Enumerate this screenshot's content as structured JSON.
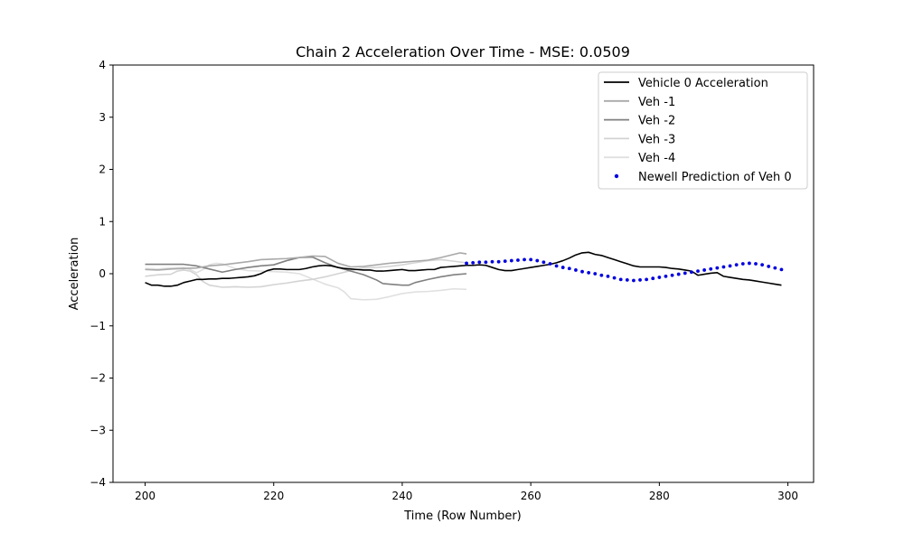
{
  "chart_data": {
    "type": "line",
    "title": "Chain 2 Acceleration Over Time - MSE: 0.0509",
    "xlabel": "Time (Row Number)",
    "ylabel": "Acceleration",
    "xlim": [
      195,
      304
    ],
    "ylim": [
      -4,
      4
    ],
    "xticks": [
      200,
      220,
      240,
      260,
      280,
      300
    ],
    "yticks": [
      -4,
      -3,
      -2,
      -1,
      0,
      1,
      2,
      3,
      4
    ],
    "grid": false,
    "legend_position": "top-right",
    "series": [
      {
        "name": "Vehicle 0 Acceleration",
        "style": "line",
        "color": "#000000",
        "points": [
          [
            200,
            -0.17
          ],
          [
            201,
            -0.22
          ],
          [
            202,
            -0.22
          ],
          [
            203,
            -0.24
          ],
          [
            204,
            -0.24
          ],
          [
            205,
            -0.22
          ],
          [
            206,
            -0.17
          ],
          [
            207,
            -0.14
          ],
          [
            208,
            -0.11
          ],
          [
            209,
            -0.11
          ],
          [
            210,
            -0.1
          ],
          [
            211,
            -0.1
          ],
          [
            212,
            -0.09
          ],
          [
            213,
            -0.09
          ],
          [
            214,
            -0.08
          ],
          [
            215,
            -0.07
          ],
          [
            216,
            -0.06
          ],
          [
            217,
            -0.04
          ],
          [
            218,
            0.0
          ],
          [
            219,
            0.06
          ],
          [
            220,
            0.09
          ],
          [
            221,
            0.09
          ],
          [
            222,
            0.08
          ],
          [
            223,
            0.08
          ],
          [
            224,
            0.08
          ],
          [
            225,
            0.1
          ],
          [
            226,
            0.13
          ],
          [
            227,
            0.15
          ],
          [
            228,
            0.16
          ],
          [
            229,
            0.15
          ],
          [
            230,
            0.12
          ],
          [
            231,
            0.1
          ],
          [
            232,
            0.09
          ],
          [
            233,
            0.08
          ],
          [
            234,
            0.07
          ],
          [
            235,
            0.07
          ],
          [
            236,
            0.05
          ],
          [
            237,
            0.05
          ],
          [
            238,
            0.06
          ],
          [
            239,
            0.07
          ],
          [
            240,
            0.08
          ],
          [
            241,
            0.06
          ],
          [
            242,
            0.06
          ],
          [
            243,
            0.07
          ],
          [
            244,
            0.08
          ],
          [
            245,
            0.08
          ],
          [
            246,
            0.12
          ],
          [
            247,
            0.13
          ],
          [
            248,
            0.14
          ],
          [
            249,
            0.15
          ],
          [
            250,
            0.16
          ],
          [
            251,
            0.16
          ],
          [
            252,
            0.17
          ],
          [
            253,
            0.16
          ],
          [
            254,
            0.12
          ],
          [
            255,
            0.08
          ],
          [
            256,
            0.06
          ],
          [
            257,
            0.06
          ],
          [
            258,
            0.08
          ],
          [
            259,
            0.1
          ],
          [
            260,
            0.12
          ],
          [
            261,
            0.14
          ],
          [
            262,
            0.16
          ],
          [
            263,
            0.18
          ],
          [
            264,
            0.21
          ],
          [
            265,
            0.25
          ],
          [
            266,
            0.3
          ],
          [
            267,
            0.36
          ],
          [
            268,
            0.4
          ],
          [
            269,
            0.41
          ],
          [
            270,
            0.37
          ],
          [
            271,
            0.35
          ],
          [
            272,
            0.31
          ],
          [
            273,
            0.27
          ],
          [
            274,
            0.23
          ],
          [
            275,
            0.19
          ],
          [
            276,
            0.15
          ],
          [
            277,
            0.13
          ],
          [
            278,
            0.13
          ],
          [
            279,
            0.13
          ],
          [
            280,
            0.13
          ],
          [
            281,
            0.12
          ],
          [
            282,
            0.1
          ],
          [
            283,
            0.09
          ],
          [
            284,
            0.07
          ],
          [
            285,
            0.05
          ],
          [
            286,
            -0.03
          ],
          [
            287,
            -0.01
          ],
          [
            288,
            0.01
          ],
          [
            289,
            0.02
          ],
          [
            290,
            -0.05
          ],
          [
            291,
            -0.07
          ],
          [
            292,
            -0.09
          ],
          [
            293,
            -0.11
          ],
          [
            294,
            -0.12
          ],
          [
            295,
            -0.14
          ],
          [
            296,
            -0.16
          ],
          [
            297,
            -0.18
          ],
          [
            298,
            -0.2
          ],
          [
            299,
            -0.22
          ]
        ]
      },
      {
        "name": "Veh -1",
        "style": "line",
        "color": "#a9a9a9",
        "points": [
          [
            200,
            0.08
          ],
          [
            202,
            0.07
          ],
          [
            204,
            0.09
          ],
          [
            206,
            0.1
          ],
          [
            208,
            0.11
          ],
          [
            210,
            0.15
          ],
          [
            212,
            0.17
          ],
          [
            214,
            0.2
          ],
          [
            216,
            0.23
          ],
          [
            218,
            0.27
          ],
          [
            220,
            0.28
          ],
          [
            222,
            0.29
          ],
          [
            224,
            0.31
          ],
          [
            226,
            0.34
          ],
          [
            228,
            0.33
          ],
          [
            230,
            0.2
          ],
          [
            232,
            0.13
          ],
          [
            234,
            0.14
          ],
          [
            236,
            0.17
          ],
          [
            238,
            0.2
          ],
          [
            240,
            0.22
          ],
          [
            242,
            0.24
          ],
          [
            244,
            0.26
          ],
          [
            246,
            0.31
          ],
          [
            248,
            0.37
          ],
          [
            249,
            0.4
          ],
          [
            250,
            0.38
          ]
        ]
      },
      {
        "name": "Veh -2",
        "style": "line",
        "color": "#808080",
        "points": [
          [
            200,
            0.18
          ],
          [
            202,
            0.18
          ],
          [
            204,
            0.18
          ],
          [
            206,
            0.18
          ],
          [
            208,
            0.15
          ],
          [
            209,
            0.12
          ],
          [
            210,
            0.09
          ],
          [
            212,
            0.03
          ],
          [
            214,
            0.08
          ],
          [
            216,
            0.12
          ],
          [
            218,
            0.15
          ],
          [
            220,
            0.17
          ],
          [
            222,
            0.25
          ],
          [
            224,
            0.31
          ],
          [
            226,
            0.32
          ],
          [
            228,
            0.21
          ],
          [
            230,
            0.12
          ],
          [
            232,
            0.05
          ],
          [
            234,
            -0.02
          ],
          [
            236,
            -0.12
          ],
          [
            237,
            -0.19
          ],
          [
            238,
            -0.2
          ],
          [
            240,
            -0.22
          ],
          [
            241,
            -0.22
          ],
          [
            242,
            -0.17
          ],
          [
            244,
            -0.11
          ],
          [
            246,
            -0.06
          ],
          [
            248,
            -0.02
          ],
          [
            250,
            0.0
          ]
        ]
      },
      {
        "name": "Veh -3",
        "style": "line",
        "color": "#d3d3d3",
        "points": [
          [
            200,
            -0.05
          ],
          [
            202,
            -0.02
          ],
          [
            204,
            -0.01
          ],
          [
            205,
            0.05
          ],
          [
            206,
            0.07
          ],
          [
            207,
            0.05
          ],
          [
            208,
            -0.02
          ],
          [
            209,
            -0.15
          ],
          [
            210,
            -0.22
          ],
          [
            212,
            -0.26
          ],
          [
            214,
            -0.25
          ],
          [
            216,
            -0.26
          ],
          [
            218,
            -0.25
          ],
          [
            220,
            -0.21
          ],
          [
            222,
            -0.18
          ],
          [
            224,
            -0.14
          ],
          [
            226,
            -0.11
          ],
          [
            228,
            -0.06
          ],
          [
            230,
            0.0
          ],
          [
            232,
            0.06
          ],
          [
            234,
            0.11
          ],
          [
            236,
            0.12
          ],
          [
            238,
            0.14
          ],
          [
            240,
            0.17
          ],
          [
            242,
            0.21
          ],
          [
            244,
            0.25
          ],
          [
            246,
            0.27
          ],
          [
            248,
            0.24
          ],
          [
            250,
            0.21
          ]
        ]
      },
      {
        "name": "Veh -4",
        "style": "line",
        "color": "#e0e0e0",
        "points": [
          [
            200,
            0.1
          ],
          [
            202,
            0.09
          ],
          [
            204,
            0.11
          ],
          [
            206,
            0.12
          ],
          [
            207,
            0.08
          ],
          [
            208,
            0.02
          ],
          [
            209,
            0.08
          ],
          [
            210,
            0.17
          ],
          [
            211,
            0.2
          ],
          [
            212,
            0.19
          ],
          [
            214,
            0.1
          ],
          [
            216,
            0.06
          ],
          [
            218,
            0.05
          ],
          [
            220,
            0.04
          ],
          [
            222,
            0.03
          ],
          [
            224,
            0.0
          ],
          [
            226,
            -0.1
          ],
          [
            228,
            -0.2
          ],
          [
            230,
            -0.27
          ],
          [
            231,
            -0.35
          ],
          [
            232,
            -0.48
          ],
          [
            234,
            -0.5
          ],
          [
            236,
            -0.49
          ],
          [
            238,
            -0.44
          ],
          [
            240,
            -0.38
          ],
          [
            242,
            -0.35
          ],
          [
            244,
            -0.34
          ],
          [
            246,
            -0.32
          ],
          [
            248,
            -0.29
          ],
          [
            250,
            -0.3
          ]
        ]
      },
      {
        "name": "Newell Prediction of Veh 0",
        "style": "dots",
        "color": "#0000e0",
        "points": [
          [
            250,
            0.2
          ],
          [
            251,
            0.21
          ],
          [
            252,
            0.22
          ],
          [
            253,
            0.22
          ],
          [
            254,
            0.23
          ],
          [
            255,
            0.23
          ],
          [
            256,
            0.24
          ],
          [
            257,
            0.25
          ],
          [
            258,
            0.26
          ],
          [
            259,
            0.27
          ],
          [
            260,
            0.27
          ],
          [
            261,
            0.25
          ],
          [
            262,
            0.22
          ],
          [
            263,
            0.19
          ],
          [
            264,
            0.15
          ],
          [
            265,
            0.12
          ],
          [
            266,
            0.1
          ],
          [
            267,
            0.07
          ],
          [
            268,
            0.04
          ],
          [
            269,
            0.02
          ],
          [
            270,
            0.0
          ],
          [
            271,
            -0.03
          ],
          [
            272,
            -0.05
          ],
          [
            273,
            -0.08
          ],
          [
            274,
            -0.11
          ],
          [
            275,
            -0.12
          ],
          [
            276,
            -0.13
          ],
          [
            277,
            -0.12
          ],
          [
            278,
            -0.11
          ],
          [
            279,
            -0.09
          ],
          [
            280,
            -0.07
          ],
          [
            281,
            -0.05
          ],
          [
            282,
            -0.03
          ],
          [
            283,
            -0.01
          ],
          [
            284,
            0.01
          ],
          [
            285,
            0.03
          ],
          [
            286,
            0.05
          ],
          [
            287,
            0.07
          ],
          [
            288,
            0.09
          ],
          [
            289,
            0.11
          ],
          [
            290,
            0.13
          ],
          [
            291,
            0.15
          ],
          [
            292,
            0.17
          ],
          [
            293,
            0.19
          ],
          [
            294,
            0.2
          ],
          [
            295,
            0.19
          ],
          [
            296,
            0.17
          ],
          [
            297,
            0.14
          ],
          [
            298,
            0.11
          ],
          [
            299,
            0.08
          ]
        ]
      }
    ]
  }
}
